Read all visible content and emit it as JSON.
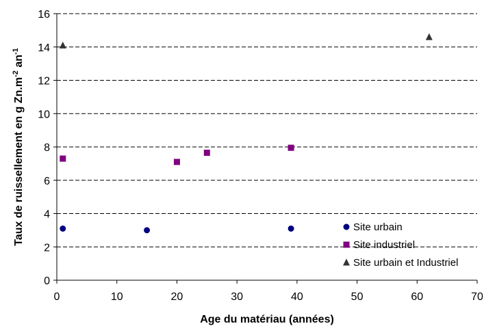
{
  "chart_data": {
    "type": "scatter",
    "title": "",
    "xlabel": "Age du matériau (années)",
    "ylabel": {
      "prefix": "Taux de ruissellement en g Zn.m",
      "sup1": "-2",
      "mid": " an",
      "sup2": "-1"
    },
    "xlim": [
      0,
      70
    ],
    "ylim": [
      0,
      16
    ],
    "x_ticks": [
      0,
      10,
      20,
      30,
      40,
      50,
      60,
      70
    ],
    "x_tick_labels": [
      "0",
      "10",
      "20",
      "30",
      "40",
      "50",
      "60",
      "70"
    ],
    "y_ticks": [
      0,
      2,
      4,
      6,
      8,
      10,
      12,
      14,
      16
    ],
    "y_tick_labels": [
      "0",
      "2",
      "4",
      "6",
      "8",
      "10",
      "12",
      "14",
      "16"
    ],
    "grid": "horizontal dashed",
    "legend_position": "bottom-right",
    "series": [
      {
        "name": "Site urbain",
        "marker": "circle",
        "color": "#000080",
        "points": [
          {
            "x": 1,
            "y": 3.1
          },
          {
            "x": 15,
            "y": 3.0
          },
          {
            "x": 39,
            "y": 3.1
          }
        ]
      },
      {
        "name": "Site industriel",
        "marker": "square",
        "color": "#800080",
        "points": [
          {
            "x": 1,
            "y": 7.3
          },
          {
            "x": 20,
            "y": 7.1
          },
          {
            "x": 25,
            "y": 7.65
          },
          {
            "x": 39,
            "y": 7.95
          }
        ]
      },
      {
        "name": "Site urbain et Industriel",
        "marker": "triangle",
        "color": "#333333",
        "points": [
          {
            "x": 1,
            "y": 14.1
          },
          {
            "x": 62,
            "y": 14.6
          }
        ]
      }
    ]
  }
}
